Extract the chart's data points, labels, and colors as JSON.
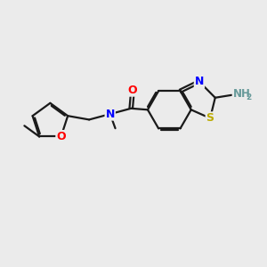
{
  "background_color": "#ebebeb",
  "atom_colors": {
    "C": "#1a1a1a",
    "N": "#0000ff",
    "O": "#ff0000",
    "S": "#bbaa00",
    "NH2_color": "#669999"
  },
  "bond_color": "#1a1a1a",
  "bond_width": 1.6,
  "dbo": 0.055,
  "figsize": [
    3.0,
    3.0
  ],
  "dpi": 100
}
